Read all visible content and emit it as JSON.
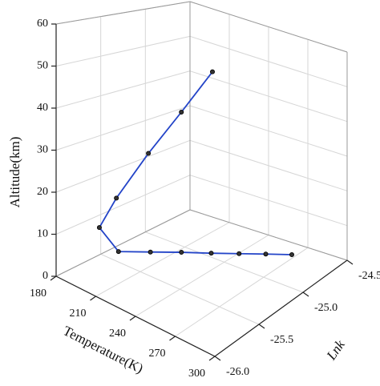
{
  "chart_data": {
    "type": "line3d",
    "x_label": "Temperature(K)",
    "y_label": "Lnk",
    "z_label": "Altitude(km)",
    "series": [
      {
        "color": "#2344c8",
        "temperature": [
          237.8,
          224.3,
          209.4,
          192.2,
          186.4,
          200.9,
          214.3,
          227.7,
          241.6,
          254.7,
          267.6,
          280.7
        ],
        "lnk": [
          -25.1,
          -25.25,
          -25.4,
          -25.505,
          -25.61,
          -25.61,
          -25.45,
          -25.3,
          -25.17,
          -25.05,
          -24.94,
          -24.84
        ],
        "altitude": [
          51.7,
          40.4,
          28.9,
          16.0,
          8.8,
          5,
          5,
          5,
          5,
          5,
          5,
          5
        ]
      }
    ],
    "xlim": [
      180,
      300
    ],
    "xticks": [
      180,
      210,
      240,
      270,
      300
    ],
    "ylim": [
      -26,
      -24.5
    ],
    "yticks": [
      {
        "value": -26,
        "label": "-26.0"
      },
      {
        "value": -25.5,
        "label": "-25.5"
      },
      {
        "value": -25,
        "label": "-25.0"
      },
      {
        "value": -24.5,
        "label": "-24.5"
      }
    ],
    "zlim": [
      0,
      60
    ],
    "zticks": [
      0,
      10,
      20,
      30,
      40,
      50,
      60
    ],
    "grid": true
  }
}
